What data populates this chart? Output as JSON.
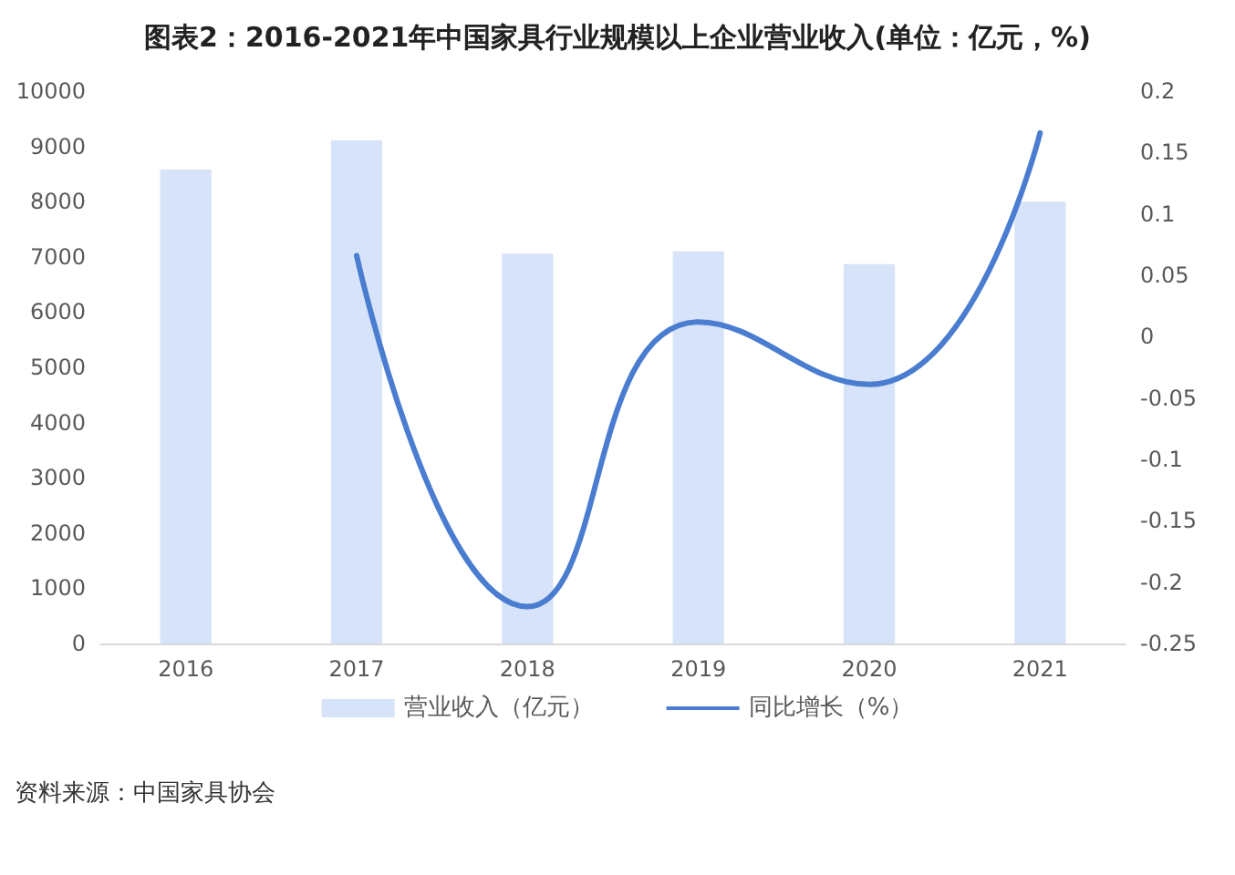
{
  "chart_data": {
    "type": "bar",
    "title": "图表2：2016-2021年中国家具行业规模以上企业营业收入(单位：亿元，%)",
    "categories": [
      "2016",
      "2017",
      "2018",
      "2019",
      "2020",
      "2021"
    ],
    "series": [
      {
        "name": "营业收入（亿元）",
        "color": "#d6e3f8",
        "values": [
          8580,
          9110,
          7060,
          7100,
          6870,
          8000
        ]
      },
      {
        "name": "同比增长（%）",
        "type": "line",
        "axis": "y2",
        "color": "#4a7dd0",
        "values": [
          null,
          0.066,
          -0.22,
          0.012,
          -0.039,
          0.166
        ]
      }
    ],
    "ylim": [
      0,
      10000
    ],
    "yticks": [
      0,
      1000,
      2000,
      3000,
      4000,
      5000,
      6000,
      7000,
      8000,
      9000,
      10000
    ],
    "y2lim": [
      -0.25,
      0.2
    ],
    "y2ticks": [
      -0.25,
      -0.2,
      -0.15,
      -0.1,
      -0.05,
      0,
      0.05,
      0.1,
      0.15,
      0.2
    ],
    "grid": false,
    "legend": "bottom",
    "marker": "none",
    "line_style": "solid",
    "annotations": [
      "资料来源：中国家具协会"
    ]
  }
}
